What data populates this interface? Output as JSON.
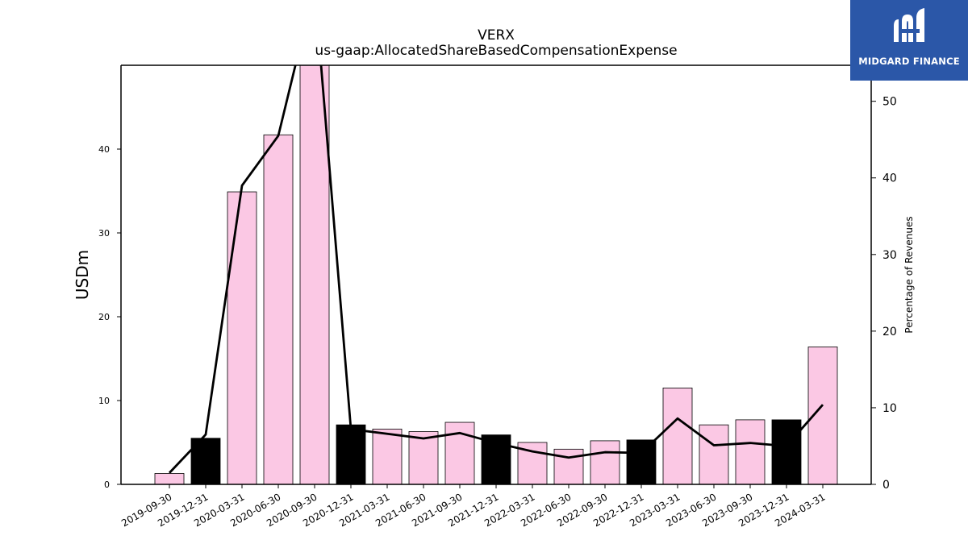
{
  "logo": {
    "text": "MIDGARD FINANCE"
  },
  "chart_data": {
    "type": "bar",
    "title": "VERX",
    "subtitle": "us-gaap:AllocatedShareBasedCompensationExpense",
    "ylabel": "USDm",
    "y2label": "Percentage of Revenues",
    "categories": [
      "2019-09-30",
      "2019-12-31",
      "2020-03-31",
      "2020-06-30",
      "2020-09-30",
      "2020-12-31",
      "2021-03-31",
      "2021-06-30",
      "2021-09-30",
      "2021-12-31",
      "2022-03-31",
      "2022-06-30",
      "2022-09-30",
      "2022-12-31",
      "2023-03-31",
      "2023-06-30",
      "2023-09-30",
      "2023-12-31",
      "2024-03-31"
    ],
    "series": [
      {
        "kind": "bar",
        "axis": "left",
        "values": [
          1.3,
          5.5,
          34.9,
          41.7,
          50.5,
          7.1,
          6.6,
          6.3,
          7.4,
          5.9,
          5.0,
          4.2,
          5.2,
          5.3,
          11.5,
          7.1,
          7.7,
          7.7,
          16.4
        ],
        "colors": [
          "#fbc8e4",
          "#000000",
          "#fbc8e4",
          "#fbc8e4",
          "#fbc8e4",
          "#000000",
          "#fbc8e4",
          "#fbc8e4",
          "#fbc8e4",
          "#000000",
          "#fbc8e4",
          "#fbc8e4",
          "#fbc8e4",
          "#000000",
          "#fbc8e4",
          "#fbc8e4",
          "#fbc8e4",
          "#000000",
          "#fbc8e4"
        ]
      },
      {
        "kind": "line",
        "axis": "right",
        "color": "#000000",
        "values": [
          1.5,
          6.5,
          39.0,
          45.5,
          65.0,
          7.2,
          6.6,
          6.0,
          6.7,
          5.4,
          4.3,
          3.5,
          4.2,
          4.1,
          8.6,
          5.1,
          5.4,
          5.0,
          10.4
        ]
      }
    ],
    "ylim": [
      0,
      50
    ],
    "yticks": [
      0,
      10,
      20,
      30,
      40
    ],
    "y2lim": [
      0,
      54.7
    ],
    "y2ticks": [
      0,
      10,
      20,
      30,
      40,
      50
    ],
    "grid": false,
    "legend": "none"
  }
}
